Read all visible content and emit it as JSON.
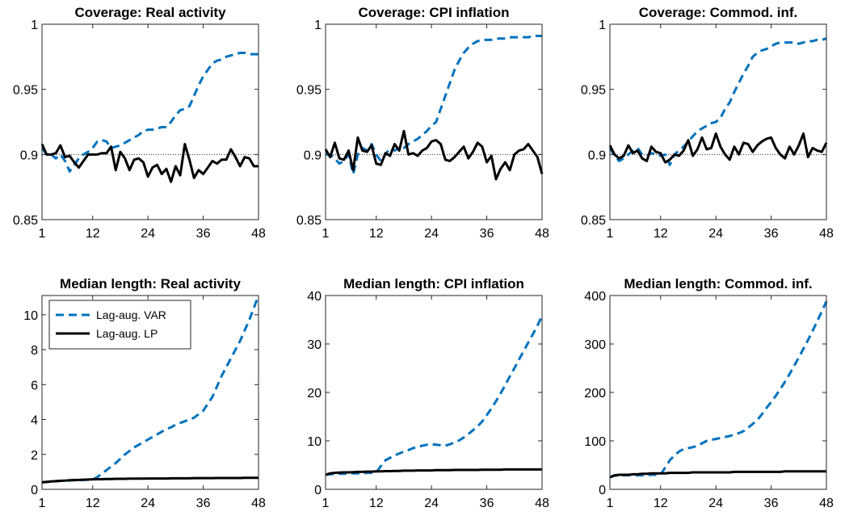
{
  "chart_data": [
    {
      "type": "line",
      "title": "Coverage: Real activity",
      "x": [
        1,
        2,
        3,
        4,
        5,
        6,
        7,
        8,
        9,
        10,
        11,
        12,
        13,
        14,
        15,
        16,
        17,
        18,
        19,
        20,
        21,
        22,
        23,
        24,
        25,
        26,
        27,
        28,
        29,
        30,
        31,
        32,
        33,
        34,
        35,
        36,
        37,
        38,
        39,
        40,
        41,
        42,
        43,
        44,
        45,
        46,
        47,
        48
      ],
      "xlim": [
        1,
        48
      ],
      "xticks": [
        1,
        12,
        24,
        36,
        48
      ],
      "ylim": [
        0.85,
        1
      ],
      "yticks": [
        0.85,
        0.9,
        0.95,
        1
      ],
      "reference_line": 0.9,
      "series": [
        {
          "color": "#0072bd",
          "line_style": "dashed",
          "values": [
            0.905,
            0.9,
            0.9,
            0.897,
            0.9,
            0.895,
            0.887,
            0.892,
            0.897,
            0.9,
            0.902,
            0.905,
            0.91,
            0.911,
            0.91,
            0.905,
            0.906,
            0.907,
            0.909,
            0.911,
            0.913,
            0.915,
            0.918,
            0.919,
            0.919,
            0.92,
            0.921,
            0.921,
            0.925,
            0.93,
            0.934,
            0.935,
            0.937,
            0.945,
            0.953,
            0.96,
            0.965,
            0.97,
            0.972,
            0.973,
            0.975,
            0.976,
            0.977,
            0.978,
            0.978,
            0.977,
            0.977,
            0.977
          ]
        },
        {
          "color": "#000000",
          "line_style": "solid",
          "values": [
            0.908,
            0.9,
            0.9,
            0.901,
            0.907,
            0.898,
            0.899,
            0.894,
            0.89,
            0.895,
            0.9,
            0.9,
            0.9,
            0.901,
            0.901,
            0.906,
            0.888,
            0.902,
            0.897,
            0.888,
            0.896,
            0.897,
            0.894,
            0.883,
            0.89,
            0.892,
            0.885,
            0.889,
            0.879,
            0.891,
            0.884,
            0.908,
            0.896,
            0.882,
            0.888,
            0.885,
            0.89,
            0.895,
            0.893,
            0.896,
            0.896,
            0.904,
            0.898,
            0.891,
            0.898,
            0.897,
            0.891,
            0.891
          ]
        }
      ]
    },
    {
      "type": "line",
      "title": "Coverage: CPI inflation",
      "x": [
        1,
        2,
        3,
        4,
        5,
        6,
        7,
        8,
        9,
        10,
        11,
        12,
        13,
        14,
        15,
        16,
        17,
        18,
        19,
        20,
        21,
        22,
        23,
        24,
        25,
        26,
        27,
        28,
        29,
        30,
        31,
        32,
        33,
        34,
        35,
        36,
        37,
        38,
        39,
        40,
        41,
        42,
        43,
        44,
        45,
        46,
        47,
        48
      ],
      "xlim": [
        1,
        48
      ],
      "xticks": [
        1,
        12,
        24,
        36,
        48
      ],
      "ylim": [
        0.85,
        1
      ],
      "yticks": [
        0.85,
        0.9,
        0.95,
        1
      ],
      "reference_line": 0.9,
      "series": [
        {
          "color": "#0072bd",
          "line_style": "dashed",
          "values": [
            0.9,
            0.9,
            0.897,
            0.893,
            0.895,
            0.9,
            0.885,
            0.9,
            0.905,
            0.903,
            0.908,
            0.9,
            0.895,
            0.9,
            0.905,
            0.903,
            0.905,
            0.905,
            0.908,
            0.91,
            0.912,
            0.915,
            0.918,
            0.922,
            0.925,
            0.935,
            0.945,
            0.955,
            0.965,
            0.972,
            0.978,
            0.982,
            0.985,
            0.987,
            0.988,
            0.988,
            0.988,
            0.989,
            0.989,
            0.989,
            0.99,
            0.99,
            0.99,
            0.99,
            0.99,
            0.991,
            0.991,
            0.991
          ]
        },
        {
          "color": "#000000",
          "line_style": "solid",
          "values": [
            0.904,
            0.898,
            0.909,
            0.897,
            0.896,
            0.903,
            0.888,
            0.913,
            0.903,
            0.902,
            0.907,
            0.893,
            0.892,
            0.901,
            0.899,
            0.908,
            0.903,
            0.918,
            0.9,
            0.901,
            0.899,
            0.903,
            0.905,
            0.91,
            0.911,
            0.908,
            0.896,
            0.895,
            0.898,
            0.902,
            0.906,
            0.897,
            0.902,
            0.909,
            0.906,
            0.894,
            0.899,
            0.881,
            0.889,
            0.894,
            0.888,
            0.9,
            0.903,
            0.904,
            0.908,
            0.903,
            0.898,
            0.885
          ]
        }
      ]
    },
    {
      "type": "line",
      "title": "Coverage: Commod. inf.",
      "x": [
        1,
        2,
        3,
        4,
        5,
        6,
        7,
        8,
        9,
        10,
        11,
        12,
        13,
        14,
        15,
        16,
        17,
        18,
        19,
        20,
        21,
        22,
        23,
        24,
        25,
        26,
        27,
        28,
        29,
        30,
        31,
        32,
        33,
        34,
        35,
        36,
        37,
        38,
        39,
        40,
        41,
        42,
        43,
        44,
        45,
        46,
        47,
        48
      ],
      "xlim": [
        1,
        48
      ],
      "xticks": [
        1,
        12,
        24,
        36,
        48
      ],
      "ylim": [
        0.85,
        1
      ],
      "yticks": [
        0.85,
        0.9,
        0.95,
        1
      ],
      "reference_line": 0.9,
      "series": [
        {
          "color": "#0072bd",
          "line_style": "dashed",
          "values": [
            0.905,
            0.899,
            0.895,
            0.897,
            0.9,
            0.903,
            0.905,
            0.9,
            0.899,
            0.901,
            0.9,
            0.899,
            0.9,
            0.892,
            0.9,
            0.903,
            0.906,
            0.91,
            0.914,
            0.918,
            0.92,
            0.922,
            0.924,
            0.925,
            0.928,
            0.935,
            0.94,
            0.948,
            0.955,
            0.962,
            0.968,
            0.975,
            0.978,
            0.98,
            0.981,
            0.983,
            0.985,
            0.986,
            0.986,
            0.986,
            0.986,
            0.985,
            0.986,
            0.987,
            0.987,
            0.988,
            0.988,
            0.989
          ]
        },
        {
          "color": "#000000",
          "line_style": "solid",
          "values": [
            0.907,
            0.9,
            0.897,
            0.899,
            0.907,
            0.901,
            0.903,
            0.897,
            0.895,
            0.906,
            0.902,
            0.901,
            0.894,
            0.896,
            0.9,
            0.899,
            0.903,
            0.911,
            0.899,
            0.904,
            0.913,
            0.904,
            0.905,
            0.916,
            0.906,
            0.9,
            0.896,
            0.906,
            0.9,
            0.909,
            0.908,
            0.902,
            0.907,
            0.91,
            0.912,
            0.913,
            0.905,
            0.9,
            0.897,
            0.906,
            0.9,
            0.907,
            0.916,
            0.898,
            0.905,
            0.903,
            0.902,
            0.909
          ]
        }
      ]
    },
    {
      "type": "line",
      "title": "Median length: Real activity",
      "legend": "upper left",
      "x": [
        1,
        2,
        3,
        4,
        5,
        6,
        7,
        8,
        9,
        10,
        11,
        12,
        13,
        14,
        15,
        16,
        17,
        18,
        19,
        20,
        21,
        22,
        23,
        24,
        25,
        26,
        27,
        28,
        29,
        30,
        31,
        32,
        33,
        34,
        35,
        36,
        37,
        38,
        39,
        40,
        41,
        42,
        43,
        44,
        45,
        46,
        47,
        48
      ],
      "xlim": [
        1,
        48
      ],
      "xticks": [
        1,
        12,
        24,
        36,
        48
      ],
      "ylim": [
        0,
        11.1
      ],
      "yticks": [
        0,
        2,
        4,
        6,
        8,
        10
      ],
      "series": [
        {
          "name": "Lag-aug. VAR",
          "color": "#0072bd",
          "line_style": "dashed",
          "values": [
            0.4,
            0.42,
            0.44,
            0.46,
            0.48,
            0.5,
            0.5,
            0.52,
            0.53,
            0.54,
            0.55,
            0.56,
            0.7,
            0.9,
            1.1,
            1.3,
            1.5,
            1.75,
            2.0,
            2.2,
            2.4,
            2.55,
            2.7,
            2.85,
            3.0,
            3.15,
            3.3,
            3.45,
            3.55,
            3.7,
            3.8,
            3.9,
            4.0,
            4.1,
            4.3,
            4.5,
            4.9,
            5.3,
            5.9,
            6.5,
            7.0,
            7.5,
            8.0,
            8.5,
            9.1,
            9.7,
            10.4,
            11.1
          ]
        },
        {
          "name": "Lag-aug. LP",
          "color": "#000000",
          "line_style": "solid",
          "values": [
            0.4,
            0.43,
            0.45,
            0.47,
            0.49,
            0.5,
            0.52,
            0.53,
            0.54,
            0.55,
            0.56,
            0.57,
            0.58,
            0.58,
            0.59,
            0.59,
            0.6,
            0.6,
            0.6,
            0.61,
            0.61,
            0.61,
            0.61,
            0.62,
            0.62,
            0.62,
            0.62,
            0.62,
            0.63,
            0.63,
            0.63,
            0.63,
            0.63,
            0.64,
            0.64,
            0.64,
            0.64,
            0.64,
            0.65,
            0.65,
            0.65,
            0.65,
            0.65,
            0.65,
            0.66,
            0.66,
            0.66,
            0.66
          ]
        }
      ]
    },
    {
      "type": "line",
      "title": "Median length: CPI inflation",
      "x": [
        1,
        2,
        3,
        4,
        5,
        6,
        7,
        8,
        9,
        10,
        11,
        12,
        13,
        14,
        15,
        16,
        17,
        18,
        19,
        20,
        21,
        22,
        23,
        24,
        25,
        26,
        27,
        28,
        29,
        30,
        31,
        32,
        33,
        34,
        35,
        36,
        37,
        38,
        39,
        40,
        41,
        42,
        43,
        44,
        45,
        46,
        47,
        48
      ],
      "xlim": [
        1,
        48
      ],
      "xticks": [
        1,
        12,
        24,
        36,
        48
      ],
      "ylim": [
        0,
        40
      ],
      "yticks": [
        0,
        10,
        20,
        30,
        40
      ],
      "series": [
        {
          "color": "#0072bd",
          "line_style": "dashed",
          "values": [
            3.0,
            3.1,
            3.2,
            3.2,
            3.2,
            3.3,
            3.3,
            3.3,
            3.3,
            3.4,
            3.4,
            3.5,
            4.8,
            6.0,
            6.5,
            7.0,
            7.4,
            7.8,
            8.1,
            8.5,
            8.8,
            9.0,
            9.2,
            9.3,
            9.2,
            9.1,
            9.0,
            9.3,
            9.7,
            10.1,
            10.7,
            11.4,
            12.2,
            13.0,
            14.0,
            15.3,
            16.7,
            18.2,
            19.8,
            21.5,
            23.3,
            25.0,
            26.8,
            28.5,
            30.3,
            32.0,
            33.8,
            35.8
          ]
        },
        {
          "color": "#000000",
          "line_style": "solid",
          "values": [
            3.0,
            3.3,
            3.4,
            3.45,
            3.5,
            3.5,
            3.55,
            3.6,
            3.6,
            3.65,
            3.65,
            3.7,
            3.7,
            3.75,
            3.75,
            3.8,
            3.8,
            3.85,
            3.85,
            3.85,
            3.9,
            3.9,
            3.9,
            3.9,
            3.95,
            3.95,
            3.95,
            3.95,
            4.0,
            4.0,
            4.0,
            4.0,
            4.0,
            4.0,
            4.05,
            4.05,
            4.05,
            4.05,
            4.05,
            4.1,
            4.1,
            4.1,
            4.1,
            4.1,
            4.1,
            4.1,
            4.1,
            4.1
          ]
        }
      ]
    },
    {
      "type": "line",
      "title": "Median length: Commod. inf.",
      "x": [
        1,
        2,
        3,
        4,
        5,
        6,
        7,
        8,
        9,
        10,
        11,
        12,
        13,
        14,
        15,
        16,
        17,
        18,
        19,
        20,
        21,
        22,
        23,
        24,
        25,
        26,
        27,
        28,
        29,
        30,
        31,
        32,
        33,
        34,
        35,
        36,
        37,
        38,
        39,
        40,
        41,
        42,
        43,
        44,
        45,
        46,
        47,
        48
      ],
      "xlim": [
        1,
        48
      ],
      "xticks": [
        1,
        12,
        24,
        36,
        48
      ],
      "ylim": [
        0,
        400
      ],
      "yticks": [
        0,
        100,
        200,
        300,
        400
      ],
      "series": [
        {
          "color": "#0072bd",
          "line_style": "dashed",
          "values": [
            25,
            28,
            29,
            29,
            29,
            29,
            29,
            29,
            29,
            30,
            30,
            30,
            45,
            60,
            70,
            78,
            83,
            85,
            87,
            90,
            95,
            100,
            102,
            104,
            106,
            108,
            110,
            113,
            116,
            120,
            127,
            135,
            143,
            155,
            168,
            180,
            193,
            207,
            222,
            238,
            255,
            272,
            290,
            308,
            327,
            347,
            367,
            388
          ]
        },
        {
          "color": "#000000",
          "line_style": "solid",
          "values": [
            25,
            29,
            30,
            30,
            30,
            31,
            31,
            32,
            32,
            33,
            33,
            33,
            33,
            34,
            34,
            34,
            34,
            34,
            35,
            35,
            35,
            35,
            35,
            35,
            35,
            35,
            35,
            36,
            36,
            36,
            36,
            36,
            36,
            36,
            36,
            36,
            36,
            36,
            37,
            37,
            37,
            37,
            37,
            37,
            37,
            37,
            37,
            37
          ]
        }
      ]
    }
  ]
}
